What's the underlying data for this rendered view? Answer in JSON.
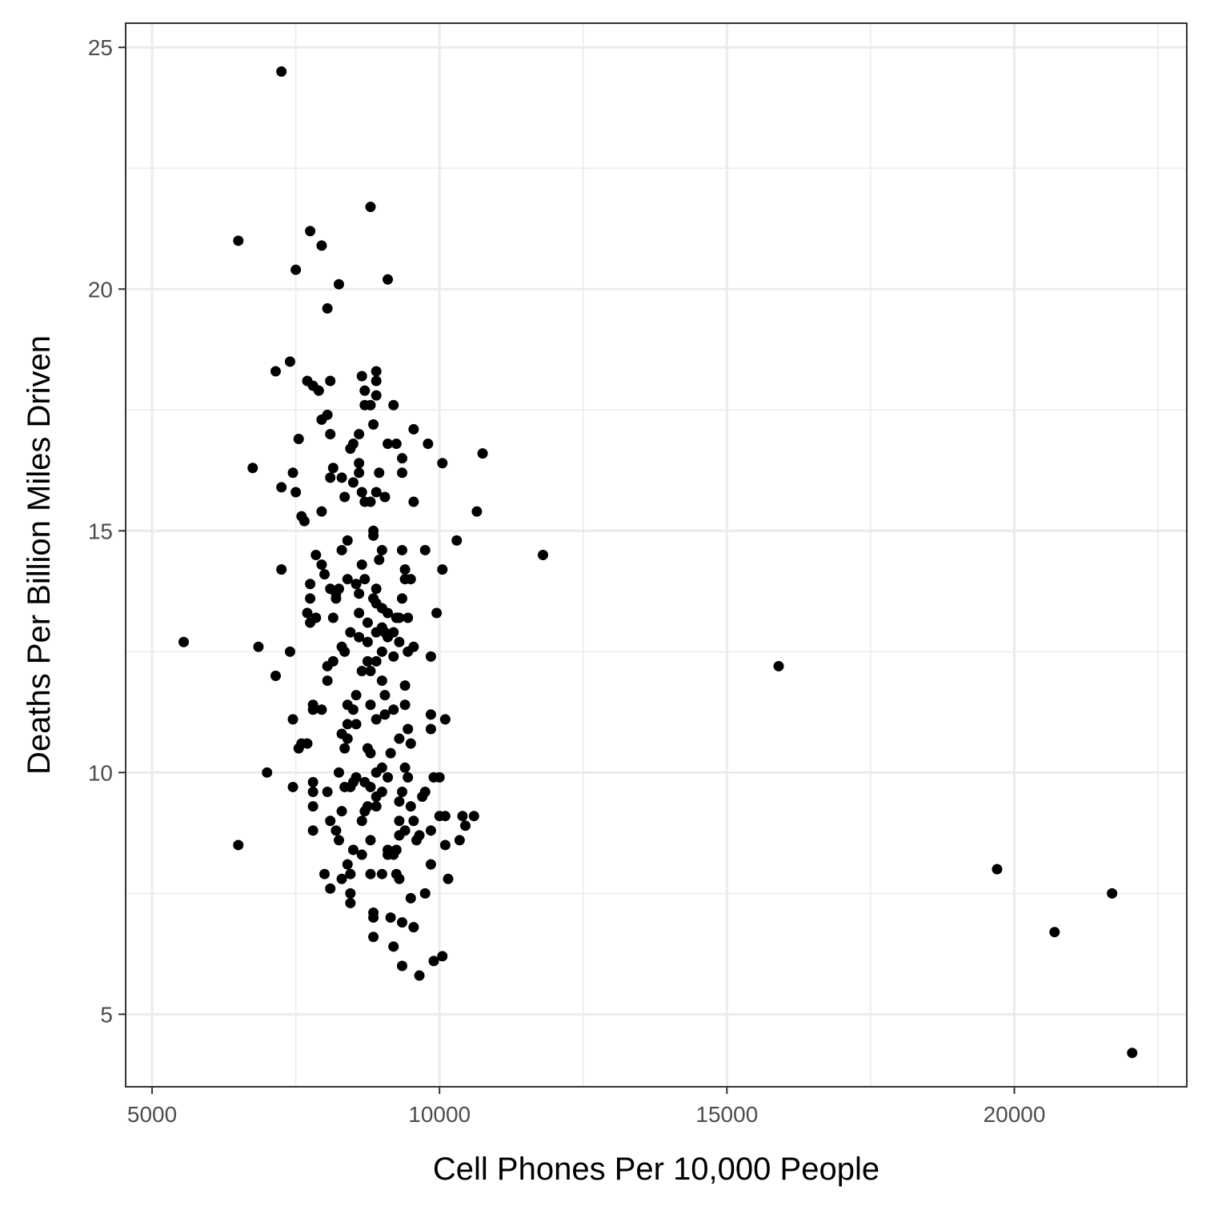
{
  "chart_data": {
    "type": "scatter",
    "xlabel": "Cell Phones Per 10,000 People",
    "ylabel": "Deaths Per Billion Miles Driven",
    "xlim": [
      4540,
      23000
    ],
    "ylim": [
      3.5,
      25.5
    ],
    "x_ticks": [
      5000,
      10000,
      15000,
      20000
    ],
    "x_tick_labels": [
      "5000",
      "10000",
      "15000",
      "20000"
    ],
    "y_ticks": [
      5,
      10,
      15,
      20,
      25
    ],
    "y_tick_labels": [
      "5",
      "10",
      "15",
      "20",
      "25"
    ],
    "grid": true,
    "point_color": "#000000",
    "points": [
      [
        7250,
        24.5
      ],
      [
        8800,
        21.7
      ],
      [
        7750,
        21.2
      ],
      [
        6500,
        21.0
      ],
      [
        7950,
        20.9
      ],
      [
        7500,
        20.4
      ],
      [
        9100,
        20.2
      ],
      [
        8250,
        20.1
      ],
      [
        8050,
        19.6
      ],
      [
        7400,
        18.5
      ],
      [
        7150,
        18.3
      ],
      [
        8900,
        18.3
      ],
      [
        8650,
        18.2
      ],
      [
        7700,
        18.1
      ],
      [
        8100,
        18.1
      ],
      [
        8900,
        18.1
      ],
      [
        7800,
        18.0
      ],
      [
        7900,
        17.9
      ],
      [
        8700,
        17.9
      ],
      [
        8900,
        17.8
      ],
      [
        8700,
        17.6
      ],
      [
        8800,
        17.6
      ],
      [
        9200,
        17.6
      ],
      [
        7950,
        17.3
      ],
      [
        8050,
        17.4
      ],
      [
        8850,
        17.2
      ],
      [
        9550,
        17.1
      ],
      [
        7550,
        16.9
      ],
      [
        8100,
        17.0
      ],
      [
        8600,
        17.0
      ],
      [
        8500,
        16.8
      ],
      [
        9100,
        16.8
      ],
      [
        9250,
        16.8
      ],
      [
        9800,
        16.8
      ],
      [
        8450,
        16.7
      ],
      [
        10750,
        16.6
      ],
      [
        9350,
        16.5
      ],
      [
        10050,
        16.4
      ],
      [
        8600,
        16.4
      ],
      [
        8150,
        16.3
      ],
      [
        6750,
        16.3
      ],
      [
        8600,
        16.2
      ],
      [
        7450,
        16.2
      ],
      [
        8100,
        16.1
      ],
      [
        8300,
        16.1
      ],
      [
        8950,
        16.2
      ],
      [
        9350,
        16.2
      ],
      [
        8500,
        16.0
      ],
      [
        7250,
        15.9
      ],
      [
        7500,
        15.8
      ],
      [
        8650,
        15.8
      ],
      [
        8900,
        15.8
      ],
      [
        9050,
        15.7
      ],
      [
        8350,
        15.7
      ],
      [
        8700,
        15.6
      ],
      [
        8800,
        15.6
      ],
      [
        9550,
        15.6
      ],
      [
        7600,
        15.3
      ],
      [
        7650,
        15.2
      ],
      [
        7950,
        15.4
      ],
      [
        10650,
        15.4
      ],
      [
        8850,
        15.0
      ],
      [
        8850,
        14.9
      ],
      [
        8400,
        14.8
      ],
      [
        10300,
        14.8
      ],
      [
        9000,
        14.6
      ],
      [
        9750,
        14.6
      ],
      [
        8300,
        14.6
      ],
      [
        9350,
        14.6
      ],
      [
        7850,
        14.5
      ],
      [
        11800,
        14.5
      ],
      [
        8950,
        14.4
      ],
      [
        8650,
        14.3
      ],
      [
        7950,
        14.3
      ],
      [
        9400,
        14.2
      ],
      [
        7250,
        14.2
      ],
      [
        10050,
        14.2
      ],
      [
        8000,
        14.1
      ],
      [
        8700,
        14.0
      ],
      [
        8400,
        14.0
      ],
      [
        9400,
        14.0
      ],
      [
        9500,
        14.0
      ],
      [
        7750,
        13.9
      ],
      [
        8550,
        13.9
      ],
      [
        8100,
        13.8
      ],
      [
        8250,
        13.8
      ],
      [
        8900,
        13.8
      ],
      [
        8200,
        13.7
      ],
      [
        8600,
        13.7
      ],
      [
        8850,
        13.6
      ],
      [
        7750,
        13.6
      ],
      [
        8200,
        13.6
      ],
      [
        9350,
        13.6
      ],
      [
        8900,
        13.5
      ],
      [
        9000,
        13.4
      ],
      [
        8600,
        13.3
      ],
      [
        7700,
        13.3
      ],
      [
        9100,
        13.3
      ],
      [
        9250,
        13.2
      ],
      [
        9450,
        13.2
      ],
      [
        9950,
        13.3
      ],
      [
        7850,
        13.2
      ],
      [
        8150,
        13.2
      ],
      [
        7750,
        13.1
      ],
      [
        8750,
        13.1
      ],
      [
        9300,
        13.2
      ],
      [
        9000,
        13.0
      ],
      [
        8900,
        12.9
      ],
      [
        9050,
        12.9
      ],
      [
        9200,
        12.9
      ],
      [
        9100,
        12.8
      ],
      [
        8450,
        12.9
      ],
      [
        8600,
        12.8
      ],
      [
        9300,
        12.7
      ],
      [
        8300,
        12.6
      ],
      [
        8750,
        12.7
      ],
      [
        5550,
        12.7
      ],
      [
        6850,
        12.6
      ],
      [
        9550,
        12.6
      ],
      [
        9450,
        12.5
      ],
      [
        9000,
        12.5
      ],
      [
        8350,
        12.5
      ],
      [
        7400,
        12.5
      ],
      [
        8900,
        12.3
      ],
      [
        8150,
        12.3
      ],
      [
        8050,
        12.2
      ],
      [
        8750,
        12.3
      ],
      [
        9200,
        12.4
      ],
      [
        9850,
        12.4
      ],
      [
        8800,
        12.1
      ],
      [
        8650,
        12.1
      ],
      [
        7150,
        12.0
      ],
      [
        15900,
        12.2
      ],
      [
        9400,
        11.8
      ],
      [
        8050,
        11.9
      ],
      [
        9000,
        11.9
      ],
      [
        8550,
        11.6
      ],
      [
        9050,
        11.6
      ],
      [
        7800,
        11.4
      ],
      [
        8400,
        11.4
      ],
      [
        9200,
        11.3
      ],
      [
        9400,
        11.4
      ],
      [
        7950,
        11.3
      ],
      [
        8500,
        11.3
      ],
      [
        8800,
        11.4
      ],
      [
        9850,
        11.2
      ],
      [
        8900,
        11.1
      ],
      [
        7800,
        11.3
      ],
      [
        9050,
        11.2
      ],
      [
        7450,
        11.1
      ],
      [
        10100,
        11.1
      ],
      [
        8550,
        11.0
      ],
      [
        8400,
        11.0
      ],
      [
        8300,
        10.8
      ],
      [
        9450,
        10.9
      ],
      [
        9300,
        10.7
      ],
      [
        9500,
        10.6
      ],
      [
        9850,
        10.9
      ],
      [
        8750,
        10.5
      ],
      [
        8400,
        10.7
      ],
      [
        7700,
        10.6
      ],
      [
        7550,
        10.5
      ],
      [
        8350,
        10.5
      ],
      [
        9150,
        10.4
      ],
      [
        8800,
        10.4
      ],
      [
        7600,
        10.6
      ],
      [
        7000,
        10.0
      ],
      [
        8250,
        10.0
      ],
      [
        9000,
        10.1
      ],
      [
        9400,
        10.1
      ],
      [
        8900,
        10.0
      ],
      [
        9100,
        9.9
      ],
      [
        8550,
        9.9
      ],
      [
        7800,
        9.8
      ],
      [
        8450,
        9.7
      ],
      [
        9450,
        9.9
      ],
      [
        9900,
        9.9
      ],
      [
        10000,
        9.9
      ],
      [
        8700,
        9.8
      ],
      [
        8800,
        9.7
      ],
      [
        7800,
        9.6
      ],
      [
        7450,
        9.7
      ],
      [
        8050,
        9.6
      ],
      [
        8500,
        9.8
      ],
      [
        8350,
        9.7
      ],
      [
        9000,
        9.6
      ],
      [
        9350,
        9.6
      ],
      [
        9750,
        9.6
      ],
      [
        8900,
        9.5
      ],
      [
        8750,
        9.3
      ],
      [
        9300,
        9.4
      ],
      [
        9700,
        9.5
      ],
      [
        7800,
        9.3
      ],
      [
        8700,
        9.2
      ],
      [
        8900,
        9.3
      ],
      [
        9500,
        9.3
      ],
      [
        8300,
        9.2
      ],
      [
        8650,
        9.0
      ],
      [
        10400,
        9.1
      ],
      [
        10600,
        9.1
      ],
      [
        9300,
        9.0
      ],
      [
        9550,
        9.0
      ],
      [
        10000,
        9.1
      ],
      [
        10100,
        9.1
      ],
      [
        8100,
        9.0
      ],
      [
        8200,
        8.8
      ],
      [
        9850,
        8.8
      ],
      [
        9400,
        8.8
      ],
      [
        7800,
        8.8
      ],
      [
        10450,
        8.9
      ],
      [
        9650,
        8.7
      ],
      [
        8800,
        8.6
      ],
      [
        9300,
        8.7
      ],
      [
        9600,
        8.6
      ],
      [
        8250,
        8.6
      ],
      [
        6500,
        8.5
      ],
      [
        8500,
        8.4
      ],
      [
        10100,
        8.5
      ],
      [
        9100,
        8.3
      ],
      [
        9200,
        8.3
      ],
      [
        9250,
        8.4
      ],
      [
        8650,
        8.3
      ],
      [
        10350,
        8.6
      ],
      [
        9100,
        8.4
      ],
      [
        8400,
        8.1
      ],
      [
        9850,
        8.1
      ],
      [
        8000,
        7.9
      ],
      [
        8450,
        7.9
      ],
      [
        8800,
        7.9
      ],
      [
        9000,
        7.9
      ],
      [
        9250,
        7.9
      ],
      [
        8300,
        7.8
      ],
      [
        9300,
        7.8
      ],
      [
        10150,
        7.8
      ],
      [
        19700,
        8.0
      ],
      [
        8100,
        7.6
      ],
      [
        8450,
        7.5
      ],
      [
        9750,
        7.5
      ],
      [
        9500,
        7.4
      ],
      [
        21700,
        7.5
      ],
      [
        8450,
        7.3
      ],
      [
        8850,
        7.1
      ],
      [
        8850,
        7.0
      ],
      [
        9150,
        7.0
      ],
      [
        9350,
        6.9
      ],
      [
        9550,
        6.8
      ],
      [
        20700,
        6.7
      ],
      [
        8850,
        6.6
      ],
      [
        9200,
        6.4
      ],
      [
        10050,
        6.2
      ],
      [
        9900,
        6.1
      ],
      [
        9350,
        6.0
      ],
      [
        9650,
        5.8
      ],
      [
        22050,
        4.2
      ]
    ]
  }
}
